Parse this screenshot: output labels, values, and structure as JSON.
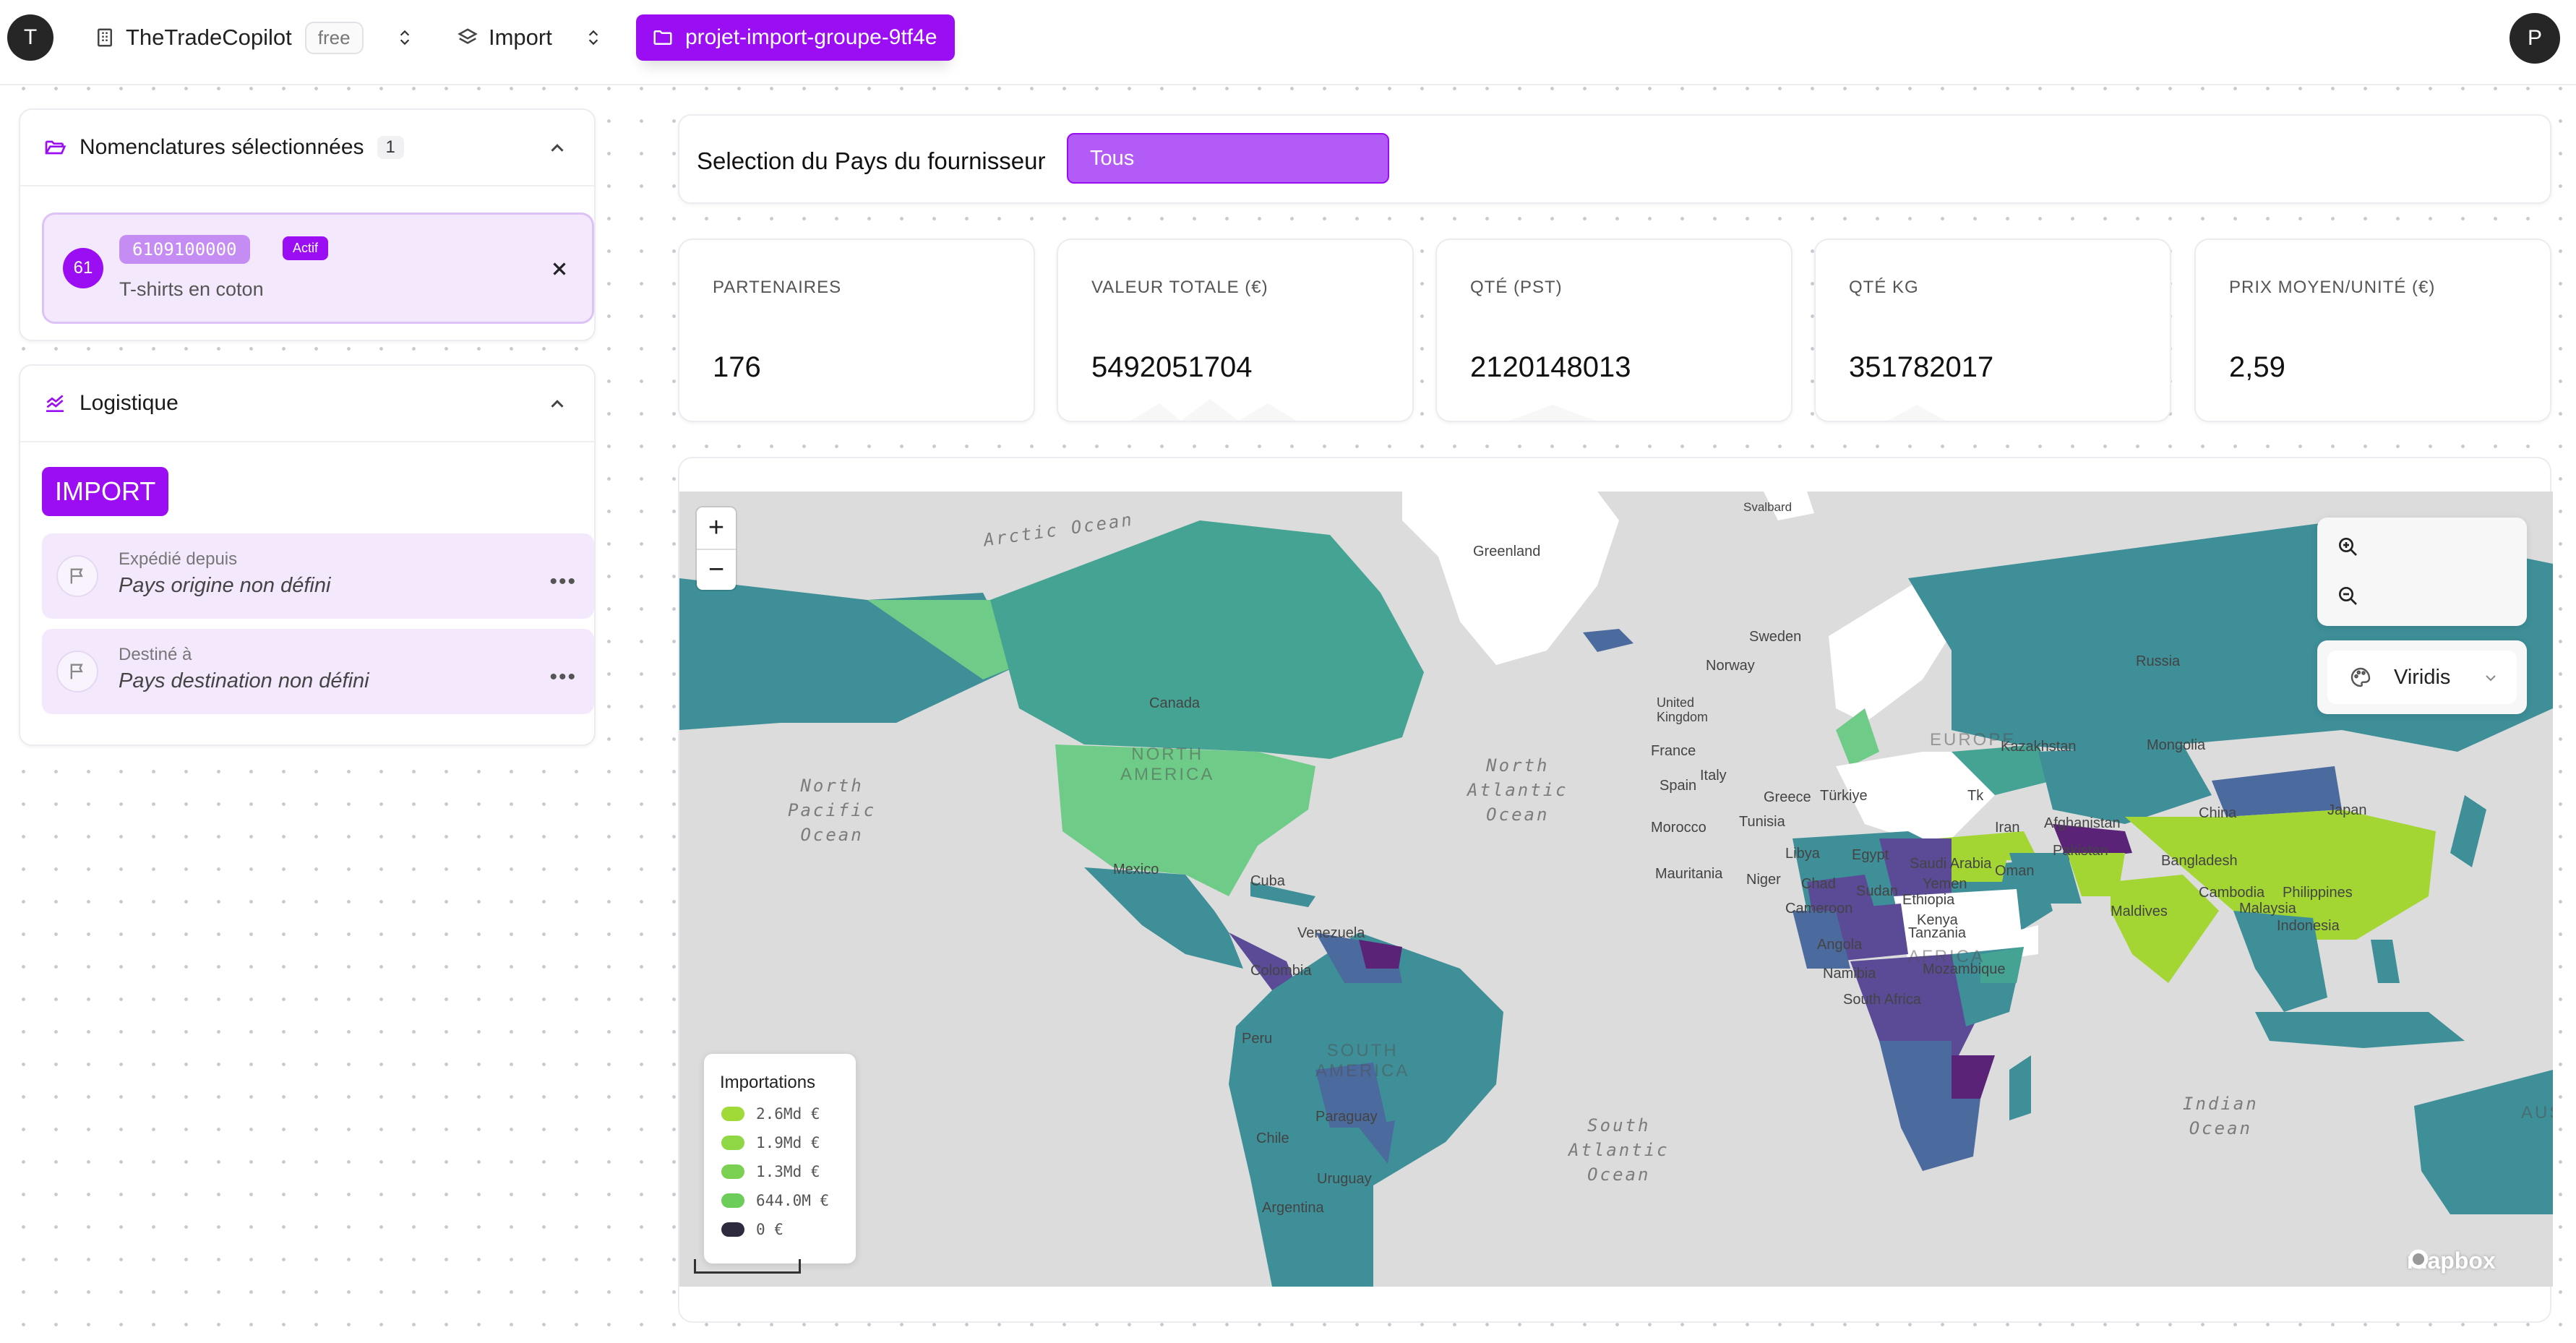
{
  "topbar": {
    "left_avatar": "T",
    "org_name": "TheTradeCopilot",
    "plan_badge": "free",
    "module_name": "Import",
    "project_name": "projet-import-groupe-9tf4e",
    "right_avatar": "P"
  },
  "nomenclatures": {
    "title": "Nomenclatures sélectionnées",
    "count": "1",
    "item": {
      "chapter": "61",
      "code": "6109100000",
      "status": "Actif",
      "label": "T-shirts en coton"
    }
  },
  "logistique": {
    "title": "Logistique",
    "mode_button": "IMPORT",
    "origin": {
      "title": "Expédié depuis",
      "value": "Pays origine non défini"
    },
    "destination": {
      "title": "Destiné à",
      "value": "Pays destination non défini"
    }
  },
  "filter": {
    "label": "Selection du Pays du fournisseur",
    "selected": "Tous"
  },
  "stats": [
    {
      "label": "PARTENAIRES",
      "value": "176"
    },
    {
      "label": "VALEUR TOTALE (€)",
      "value": "5492051704"
    },
    {
      "label": "QTÉ (PST)",
      "value": "2120148013"
    },
    {
      "label": "QTÉ KG",
      "value": "351782017"
    },
    {
      "label": "PRIX MOYEN/UNITÉ (€)",
      "value": "2,59"
    }
  ],
  "map": {
    "zoom_in": "+",
    "zoom_out": "−",
    "palette": "Viridis",
    "attribution": "mapbox",
    "ocean_labels": {
      "arctic": "Arctic Ocean",
      "north_pacific": "North\nPacific\nOcean",
      "north_atlantic": "North\nAtlantic\nOcean",
      "south_atlantic": "South\nAtlantic\nOcean",
      "indian": "Indian\nOcean"
    },
    "continent_labels": {
      "north_america": "NORTH\nAMERICA",
      "south_america": "SOUTH\nAMERICA",
      "europe": "EUROPE",
      "africa": "AFRICA",
      "australia": "AUS"
    },
    "place_labels": {
      "greenland": "Greenland",
      "svalbard": "Svalbard",
      "sweden": "Sweden",
      "norway": "Norway",
      "russia": "Russia",
      "kazakhstan": "Kazakhstan",
      "china": "China",
      "canada": "Canada",
      "mexico": "Mexico",
      "cuba": "Cuba",
      "colombia": "Colombia",
      "peru": "Peru",
      "chile": "Chile",
      "uruguay": "Uruguay",
      "argentina": "Argentina",
      "france": "France",
      "spain": "Spain",
      "italy": "Italy",
      "greece": "Greece",
      "turkiye": "Türkiye",
      "libya": "Libya",
      "egypt": "Egypt",
      "chad": "Chad",
      "sudan": "Sudan",
      "niger": "Niger",
      "saudi": "Saudi Arabia",
      "yemen": "Yemen",
      "iran": "Iran",
      "maldives": "Maldives",
      "philippines": "Philippines",
      "malaysia": "Malaysia",
      "indonesia": "Indonesia",
      "kenya": "Kenya",
      "angola": "Angola",
      "namibia": "Namibia",
      "mozambique": "Mozambique",
      "ethiopia": "Ethiopia",
      "mauritania": "Mauritania",
      "uk": "United\nKingdom",
      "japan": "Japan",
      "bangladesh": "Bangladesh",
      "pakistan": "Pakistan",
      "cambodia": "Cambodia",
      "tanzania": "Tanzania",
      "south_africa": "South Africa",
      "paraguay": "Paraguay",
      "morocco": "Morocco",
      "tunisia": "Tunisia",
      "afghanistan": "Afghanistan",
      "oman": "Oman",
      "turkmenistan": "Tk",
      "mongolia": "Mongolia",
      "cameroon": "Cameroon",
      "venezuela": "Venezuela"
    },
    "legend": {
      "title": "Importations",
      "items": [
        {
          "label": "2.6Md €",
          "color": "#a0da39"
        },
        {
          "label": "1.9Md €",
          "color": "#8fd744"
        },
        {
          "label": "1.3Md €",
          "color": "#7ad151"
        },
        {
          "label": "644.0M €",
          "color": "#6ccd5a"
        },
        {
          "label": "0 €",
          "color": "#2d2b3d"
        }
      ]
    },
    "colors": {
      "ocean": "#dcdcdc",
      "no_data": "#ffffff",
      "teal": "#3e8f98",
      "light_green": "#6fcb88",
      "lime": "#a3d633",
      "blue_purple": "#4b6a9e",
      "purple": "#5b4a96",
      "dark_purple": "#5a2377"
    }
  }
}
